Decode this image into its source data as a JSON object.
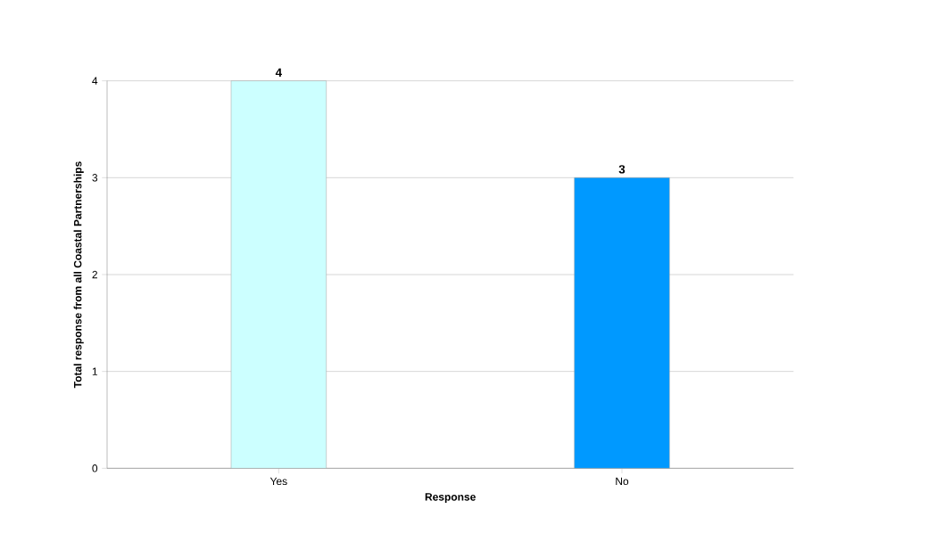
{
  "chart_data": {
    "type": "bar",
    "xlabel": "Response",
    "ylabel": "Total response from all Coastal Partnerships",
    "categories": [
      "Yes",
      "No"
    ],
    "values": [
      4,
      3
    ],
    "colors": [
      "#ccffff",
      "#0099ff"
    ],
    "ylim": [
      0,
      4
    ],
    "yticks": [
      0,
      1,
      2,
      3,
      4
    ],
    "grid": "y",
    "data_labels": true
  }
}
